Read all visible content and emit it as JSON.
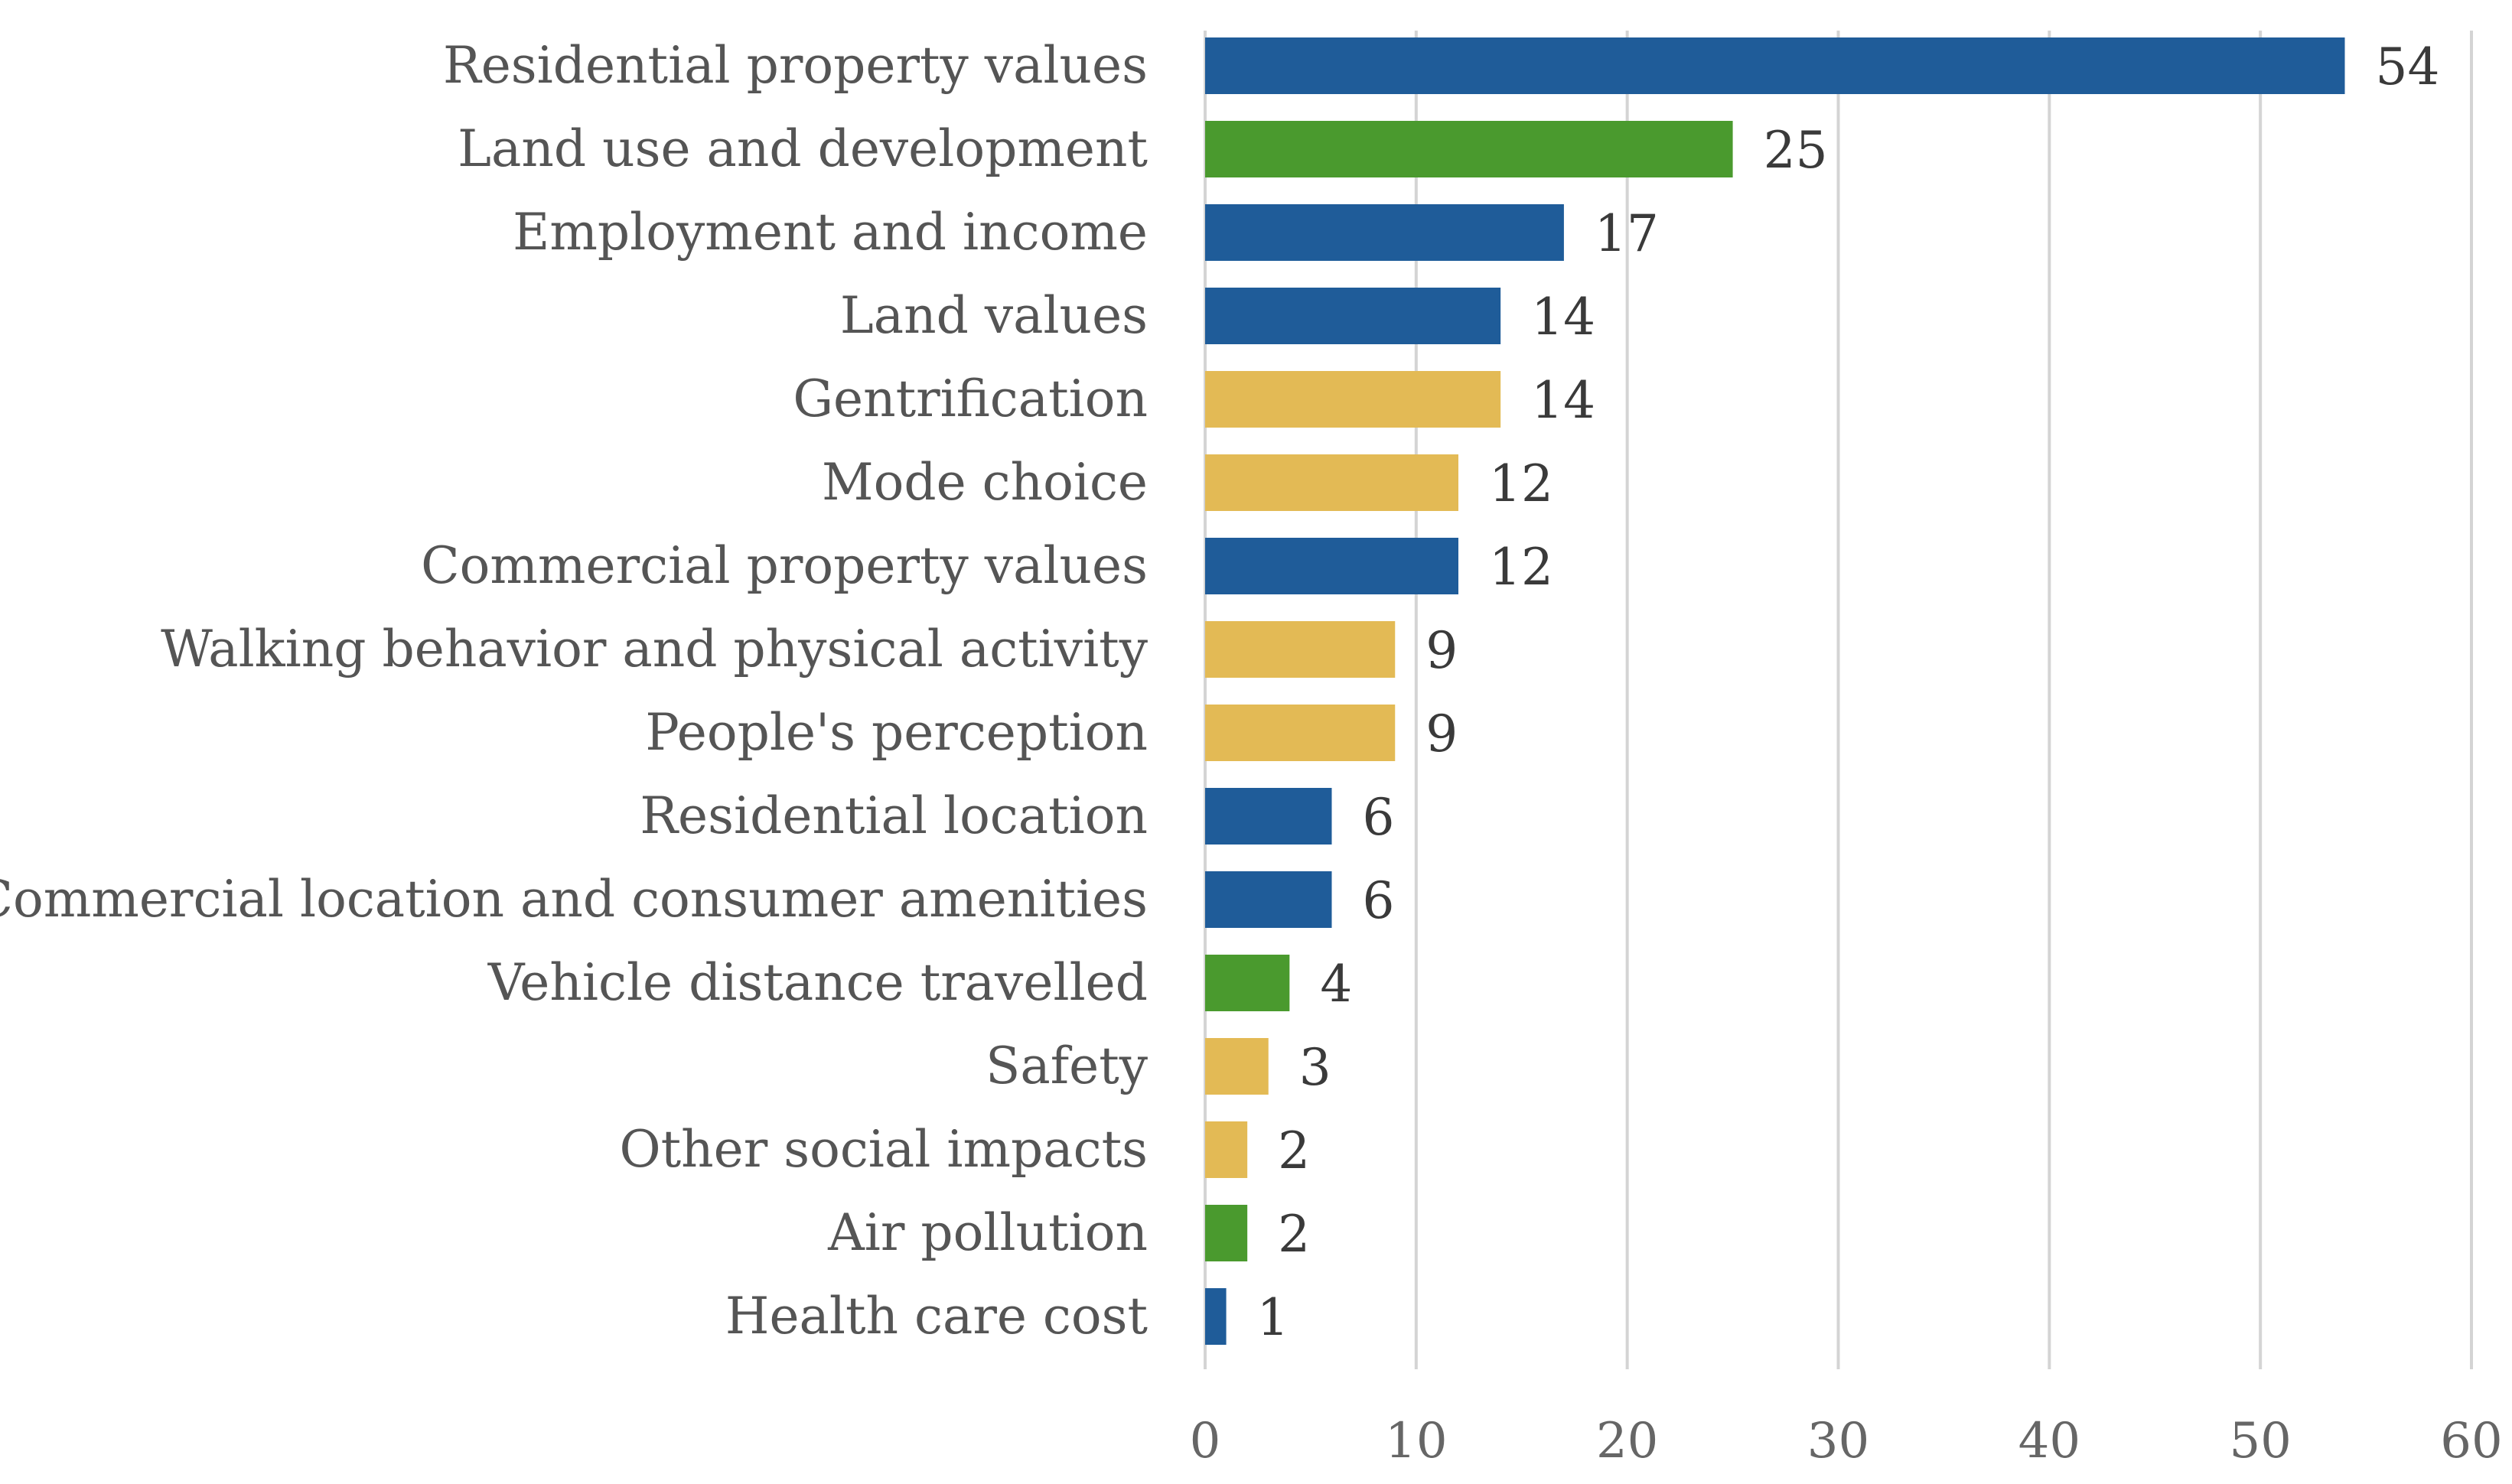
{
  "chart_data": {
    "type": "bar",
    "orientation": "horizontal",
    "title": "",
    "xlabel": "",
    "ylabel": "",
    "xlim": [
      0,
      60
    ],
    "xticks": [
      0,
      10,
      20,
      30,
      40,
      50,
      60
    ],
    "grid": "vertical",
    "legend": "none",
    "categories": [
      "Residential property values",
      "Land use and development",
      "Employment and income",
      "Land values",
      "Gentrification",
      "Mode choice",
      "Commercial property values",
      "Walking behavior and physical activity",
      "People's perception",
      "Residential location",
      "Commercial location and consumer amenities",
      "Vehicle distance travelled",
      "Safety",
      "Other social impacts",
      "Air pollution",
      "Health care cost"
    ],
    "values": [
      54,
      25,
      17,
      14,
      14,
      12,
      12,
      9,
      9,
      6,
      6,
      4,
      3,
      2,
      2,
      1
    ],
    "bar_colors": [
      "#1f5c99",
      "#4a9a2e",
      "#1f5c99",
      "#1f5c99",
      "#e3ba55",
      "#e3ba55",
      "#1f5c99",
      "#e3ba55",
      "#e3ba55",
      "#1f5c99",
      "#1f5c99",
      "#4a9a2e",
      "#e3ba55",
      "#e3ba55",
      "#4a9a2e",
      "#1f5c99"
    ]
  }
}
